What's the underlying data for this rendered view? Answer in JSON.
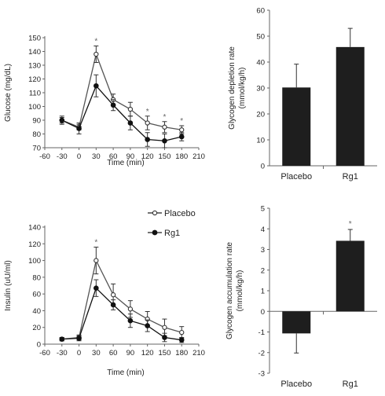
{
  "chart_data": [
    {
      "id": "glucose",
      "type": "line",
      "title": "",
      "xlabel": "Time (min)",
      "ylabel": "Glucose (mg/dL)",
      "xlim": [
        -60,
        210
      ],
      "ylim": [
        70,
        150
      ],
      "xticks": [
        -60,
        -30,
        0,
        30,
        60,
        90,
        120,
        150,
        180,
        210
      ],
      "yticks": [
        70,
        80,
        90,
        100,
        110,
        120,
        130,
        140,
        150
      ],
      "x": [
        -30,
        0,
        30,
        60,
        90,
        120,
        150,
        180
      ],
      "series": [
        {
          "name": "Placebo",
          "marker": "open",
          "values": [
            90,
            85,
            138,
            105,
            98,
            88,
            85,
            83
          ],
          "errors": [
            2,
            2,
            6,
            4,
            5,
            5,
            4,
            3
          ]
        },
        {
          "name": "Rg1",
          "marker": "filled",
          "values": [
            90,
            84,
            115,
            101,
            88,
            76,
            75,
            78
          ],
          "errors": [
            3,
            4,
            8,
            4,
            5,
            5,
            5,
            3
          ]
        }
      ],
      "significance": {
        "symbol": "*",
        "x": [
          30,
          120,
          150,
          180
        ]
      }
    },
    {
      "id": "glycogen-depletion",
      "type": "bar",
      "title": "",
      "xlabel": "",
      "ylabel": "Glycogen depletion rate (mmol/kg/h)",
      "ylim": [
        0,
        60
      ],
      "yticks": [
        0,
        10,
        20,
        30,
        40,
        50,
        60
      ],
      "categories": [
        "Placebo",
        "Rg1"
      ],
      "values": [
        30.2,
        45.8
      ],
      "errors": [
        9,
        7.2
      ]
    },
    {
      "id": "insulin",
      "type": "line",
      "title": "",
      "xlabel": "Time (min)",
      "ylabel": "Insulin (uU/ml)",
      "xlim": [
        -60,
        210
      ],
      "ylim": [
        0,
        140
      ],
      "xticks": [
        -60,
        -30,
        0,
        30,
        60,
        90,
        120,
        150,
        180,
        210
      ],
      "yticks": [
        0,
        20,
        40,
        60,
        80,
        100,
        120,
        140
      ],
      "x": [
        -30,
        0,
        30,
        60,
        90,
        120,
        150,
        180
      ],
      "legend": {
        "position": "top-right",
        "entries": [
          "Placebo",
          "Rg1"
        ]
      },
      "series": [
        {
          "name": "Placebo",
          "marker": "open",
          "values": [
            6,
            8,
            100,
            59,
            42,
            30,
            20,
            14
          ],
          "errors": [
            2,
            3,
            16,
            13,
            10,
            9,
            10,
            7
          ]
        },
        {
          "name": "Rg1",
          "marker": "filled",
          "values": [
            6,
            7,
            67,
            47,
            28,
            22,
            8,
            5
          ],
          "errors": [
            2,
            3,
            10,
            6,
            8,
            7,
            5,
            3
          ]
        }
      ],
      "significance": {
        "symbol": "*",
        "x": [
          30
        ]
      }
    },
    {
      "id": "glycogen-accumulation",
      "type": "bar",
      "title": "",
      "xlabel": "",
      "ylabel": "Glycogen accumulation rate (mmol/kg/h)",
      "ylim": [
        -3,
        5
      ],
      "yticks": [
        -3,
        -2,
        -1,
        0,
        1,
        2,
        3,
        4,
        5
      ],
      "categories": [
        "Placebo",
        "Rg1"
      ],
      "values": [
        -1.07,
        3.42
      ],
      "errors": [
        0.95,
        0.55
      ],
      "significance": {
        "symbol": "*",
        "category": "Rg1"
      }
    }
  ]
}
